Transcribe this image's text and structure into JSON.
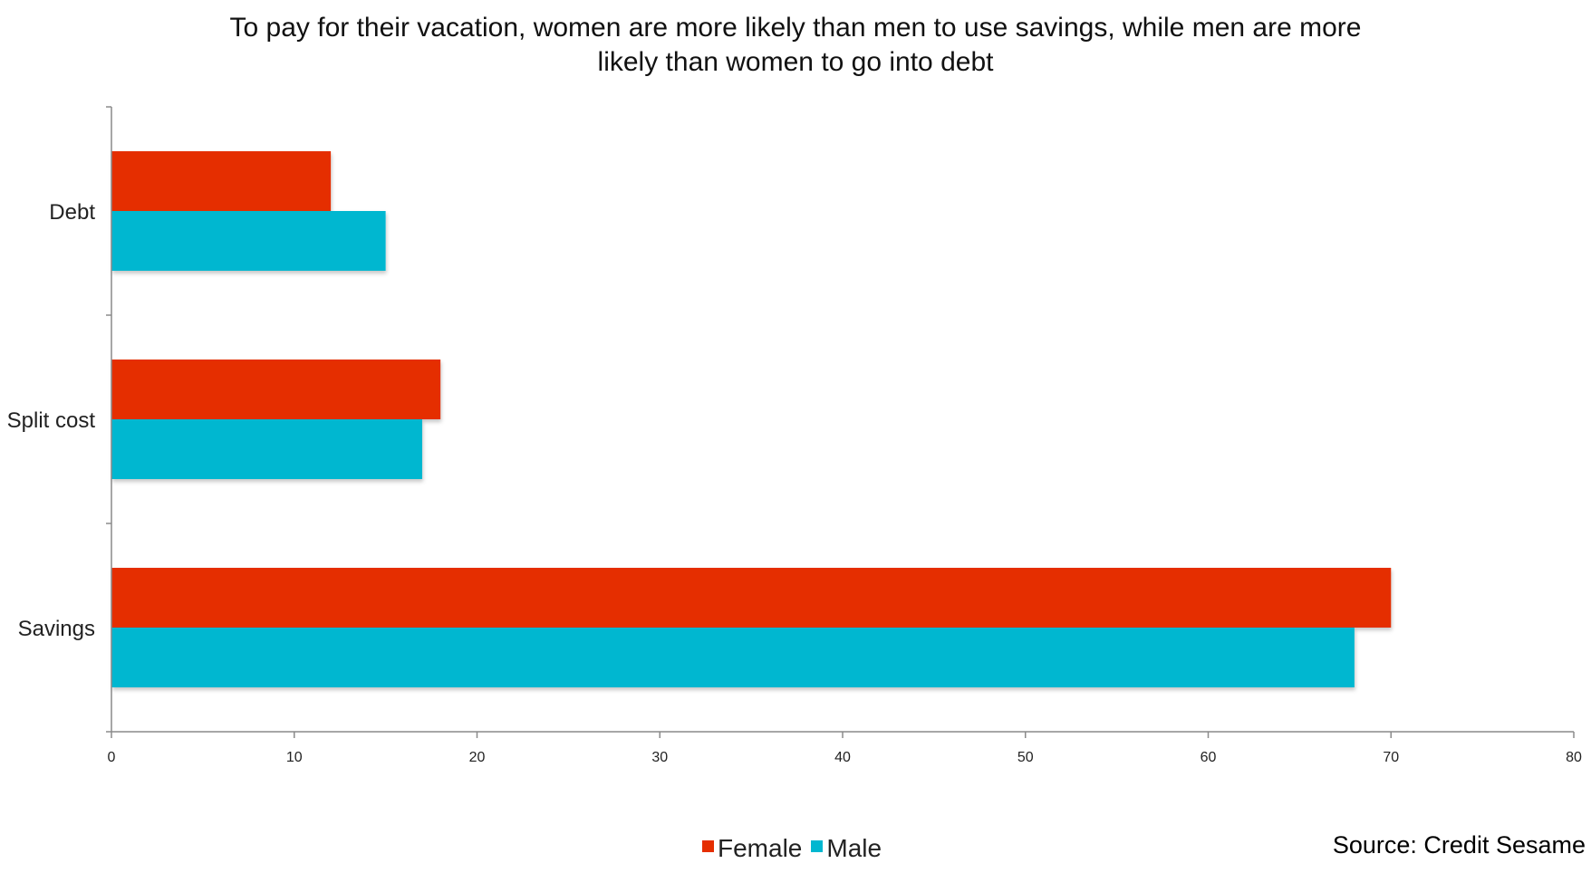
{
  "chart_data": {
    "type": "bar",
    "orientation": "horizontal",
    "title_line_1": "To pay for their vacation, women are more likely than men to use savings, while men are more",
    "title_line_2": "likely than women to go into debt",
    "categories": [
      "Debt",
      "Split cost",
      "Savings"
    ],
    "series": [
      {
        "name": "Female",
        "values": [
          12,
          18,
          70
        ],
        "color": "#e52e00"
      },
      {
        "name": "Male",
        "values": [
          15,
          17,
          68
        ],
        "color": "#00b7d0"
      }
    ],
    "xlim": [
      0,
      80
    ],
    "xticks": [
      "0",
      "10",
      "20",
      "30",
      "40",
      "50",
      "60",
      "70",
      "80"
    ],
    "xlabel": "",
    "ylabel": "",
    "grid": false,
    "legend_position": "bottom-center"
  },
  "source": "Source: Credit Sesame"
}
